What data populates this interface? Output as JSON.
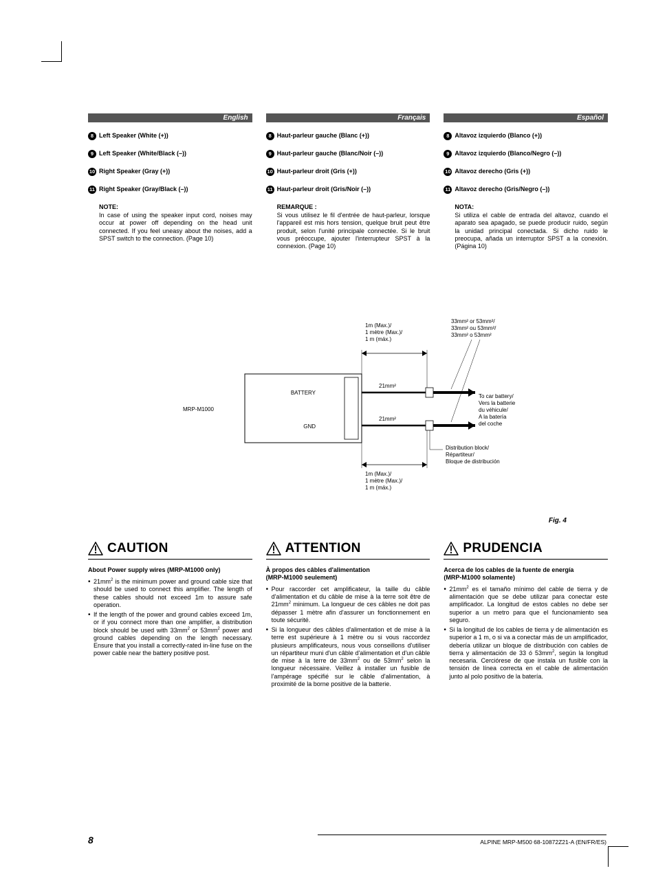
{
  "langs": [
    "English",
    "Français",
    "Español"
  ],
  "upper_cols": [
    {
      "items": [
        {
          "n": "8",
          "t": "Left Speaker (White (+))"
        },
        {
          "n": "9",
          "t": "Left Speaker (White/Black (–))"
        },
        {
          "n": "10",
          "t": "Right Speaker (Gray (+))"
        },
        {
          "n": "11",
          "t": "Right Speaker (Gray/Black (–))"
        }
      ],
      "note_hd": "NOTE:",
      "note": "In case of using the speaker input cord, noises may occur at power off depending on the head unit connected. If you feel uneasy about the noises, add a SPST switch to the connection. (Page 10)"
    },
    {
      "items": [
        {
          "n": "8",
          "t": "Haut-parleur gauche (Blanc (+))"
        },
        {
          "n": "9",
          "t": "Haut-parleur gauche (Blanc/Noir (–))"
        },
        {
          "n": "10",
          "t": "Haut-parleur droit (Gris (+))"
        },
        {
          "n": "11",
          "t": "Haut-parleur droit (Gris/Noir (–))"
        }
      ],
      "note_hd": "REMARQUE :",
      "note": "Si vous utilisez le fil d'entrée de haut-parleur, lorsque l'appareil est mis hors tension, quelque bruit peut être produit, selon l'unité principale connectée. Si le bruit vous préoccupe, ajouter l'interrupteur SPST à la connexion. (Page 10)"
    },
    {
      "items": [
        {
          "n": "8",
          "t": "Altavoz izquierdo (Blanco (+))"
        },
        {
          "n": "9",
          "t": "Altavoz izquierdo (Blanco/Negro (–))"
        },
        {
          "n": "10",
          "t": "Altavoz derecho (Gris (+))"
        },
        {
          "n": "11",
          "t": "Altavoz derecho (Gris/Negro (–))"
        }
      ],
      "note_hd": "NOTA:",
      "note": "Si utiliza el cable de entrada del altavoz, cuando el aparato sea apagado, se puede producir ruido, según la unidad principal conectada. Si dicho ruido le preocupa, añada un interruptor SPST a la conexión. (Página 10)"
    }
  ],
  "diagram": {
    "box_label": "MRP-M1000",
    "batt": "BATTERY",
    "gnd": "GND",
    "dim_top": "1m (Max.)/\n1 mètre (Max.)/\n1 m (máx.)",
    "dim_bot": "1m (Max.)/\n1 mètre (Max.)/\n1 m (máx.)",
    "sz21": "21mm²",
    "sz33": "33mm² or 53mm²/\n33mm² ou 53mm²/\n33mm² o 53mm²",
    "to_batt": "To car battery/\nVers la batterie\ndu véhicule/\nA la batería\ndel coche",
    "dist": "Distribution block/\nRépartiteur/\nBloque de distribución",
    "cap": "Fig. 4"
  },
  "warn": [
    {
      "head": "CAUTION",
      "sub": "About Power supply wires (MRP-M1000 only)",
      "bullets": [
        "21mm² is the minimum power and ground cable size that should be used to connect this amplifier. The length of these cables should not exceed 1m to assure safe operation.",
        "If the length of the power and ground cables exceed 1m, or if you connect more than one amplifier, a distribution block should be used with 33mm² or 53mm² power and ground cables depending on the length necessary. Ensure that you install a correctly-rated in-line fuse on the power cable near the battery positive post."
      ]
    },
    {
      "head": "ATTENTION",
      "sub": "À propos des câbles d'alimentation\n(MRP-M1000 seulement)",
      "bullets": [
        "Pour raccorder cet amplificateur, la taille du câble d'alimentation et du câble de mise à la terre soit être de 21mm² minimum. La longueur de ces câbles ne doit pas dépasser 1 mètre afin d'assurer un fonctionnement en toute sécurité.",
        "Si la longueur des câbles d'alimentation et de mise à la terre est supérieure à 1 mètre ou si vous raccordez plusieurs amplificateurs, nous vous conseillons d'utiliser un répartiteur muni d'un câble d'alimentation et d'un câble de mise à la terre de 33mm² ou de 53mm² selon la longueur nécessaire. Veillez à installer un fusible de l'ampérage spécifié sur le câble d'alimentation, à proximité de la borne positive de la batterie."
      ]
    },
    {
      "head": "PRUDENCIA",
      "sub": "Acerca de los cables de la fuente de energía\n(MRP-M1000 solamente)",
      "bullets": [
        "21mm² es el tamaño mínimo del cable de tierra y de alimentación que se debe utilizar para conectar este amplificador. La longitud de estos cables no debe ser superior a un metro para que el funcionamiento sea seguro.",
        "Si la longitud de los cables de tierra y de alimentación es superior a 1 m, o si va a conectar más de un amplificador, debería utilizar un bloque de distribución con cables de tierra y alimentación de 33 ó 53mm², según la longitud necesaria. Cerciórese de que instala un fusible con la tensión de línea correcta en el cable de alimentación junto al polo positivo de la batería."
      ]
    }
  ],
  "page_num": "8",
  "footer": "ALPINE MRP-M500  68-10872Z21-A (EN/FR/ES)"
}
